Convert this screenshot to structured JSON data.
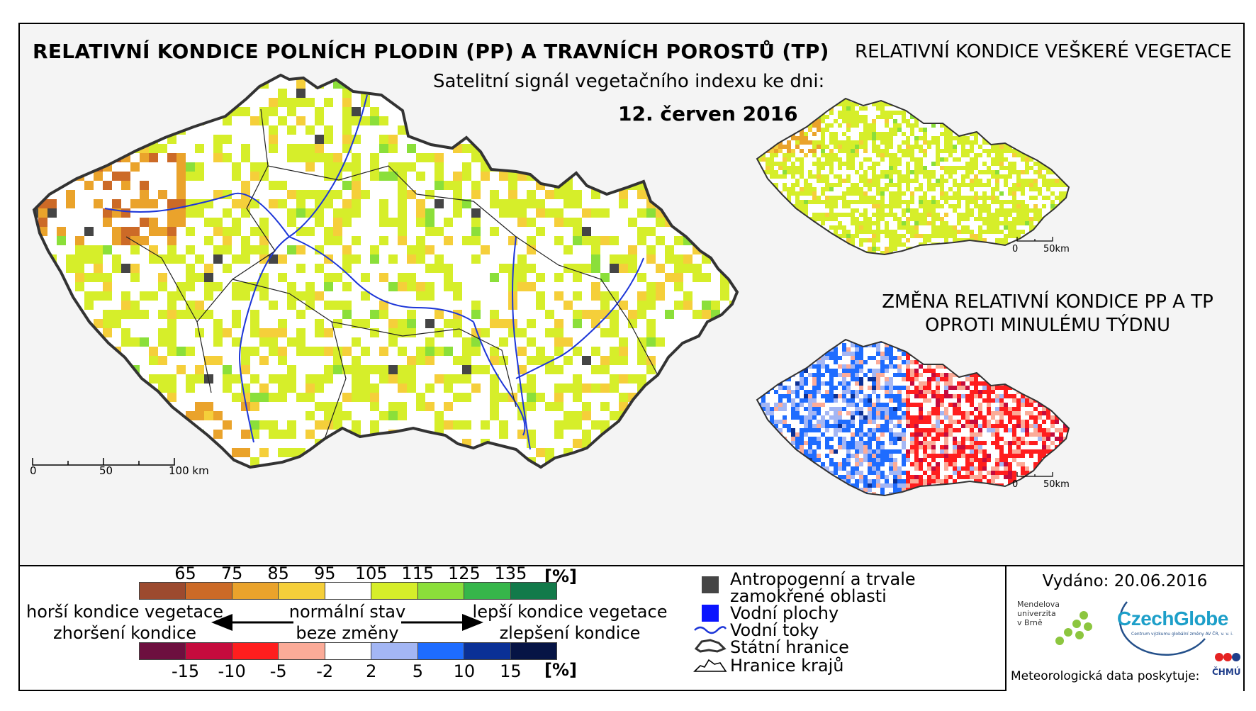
{
  "titles": {
    "main": "RELATIVNÍ KONDICE POLNÍCH PLODIN (PP) A TRAVNÍCH POROSTŮ (TP)",
    "subtitle": "Satelitní signál vegetačního indexu ke dni:",
    "date": "12. červen 2016",
    "vegetation": "RELATIVNÍ KONDICE VEŠKERÉ VEGETACE",
    "change": "ZMĚNA RELATIVNÍ KONDICE PP A TP OPROTI MINULÉMU TÝDNU"
  },
  "main_scale": {
    "labels": [
      "0",
      "50",
      "100 km"
    ]
  },
  "mini_scale": {
    "labels": [
      "0",
      "50km"
    ]
  },
  "legend": {
    "condition_ticks": [
      "65",
      "75",
      "85",
      "95",
      "105",
      "115",
      "125",
      "135"
    ],
    "condition_unit": "[%]",
    "condition_colors": [
      "#9c4a2f",
      "#cc6a27",
      "#eaa32b",
      "#f5cf3a",
      "#ffffff",
      "#d6ee2a",
      "#8bdf3a",
      "#36b64a",
      "#127a4a"
    ],
    "change_ticks": [
      "-15",
      "-10",
      "-5",
      "-2",
      "2",
      "5",
      "10",
      "15"
    ],
    "change_unit": "[%]",
    "change_colors": [
      "#6d0f3f",
      "#c50b3d",
      "#ff1e1e",
      "#fbab98",
      "#ffffff",
      "#a3b6f4",
      "#1e6cff",
      "#0a3096",
      "#061445"
    ],
    "left_text": [
      "horší kondice vegetace",
      "zhoršení kondice"
    ],
    "center_text": [
      "normální stav",
      "beze změny"
    ],
    "right_text": [
      "lepší kondice vegetace",
      "zlepšení kondice"
    ]
  },
  "map_key": {
    "anthropogenic": [
      "Antropogenní a trvale",
      "zamokřené oblasti"
    ],
    "water_bodies": "Vodní plochy",
    "rivers": "Vodní toky",
    "state_border": "Státní hranice",
    "region_border": "Hranice krajů"
  },
  "issued": "Vydáno: 20.06.2016",
  "logos": {
    "mendel": [
      "Mendelova",
      "univerzita",
      "v Brně"
    ],
    "czechglobe": "CzechGlobe",
    "czechglobe_sub": "Centrum výzkumu globální změny AV ČR, v. v. i.",
    "chmu": "ČHMÚ"
  },
  "meteo_credit": "Meteorologická data poskytuje:",
  "colors": {
    "border": "#333333",
    "river": "#1d36d8",
    "anthropogenic": "#454545",
    "water": "#0a14ff"
  }
}
